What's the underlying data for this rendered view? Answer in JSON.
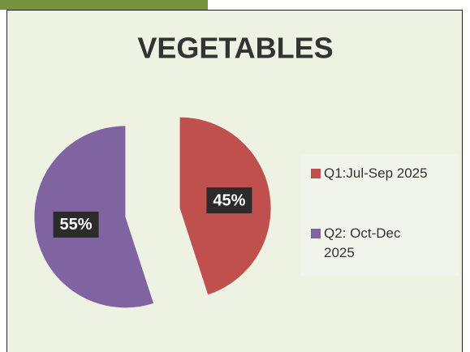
{
  "chart_data": {
    "type": "pie",
    "title": "VEGETABLES",
    "categories": [
      "Q1:Jul-Sep 2025",
      "Q2: Oct-Dec 2025"
    ],
    "values": [
      45,
      55
    ],
    "value_labels": [
      "45%",
      "55%"
    ],
    "colors": [
      "#c0504d",
      "#8064a2"
    ],
    "legend": "right"
  }
}
